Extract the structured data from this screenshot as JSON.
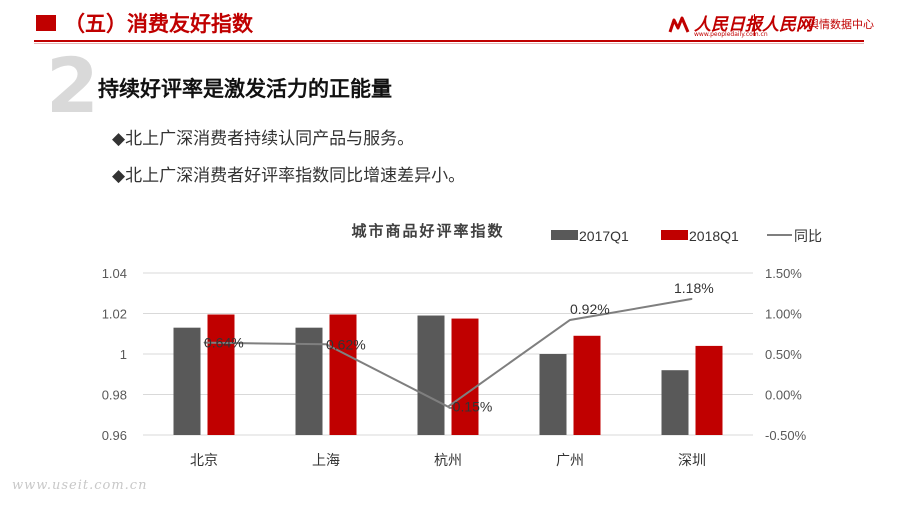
{
  "header": {
    "title": "（五）消费友好指数",
    "logo_people_daily": "人民日报",
    "logo_url": "www.peopledaily.com.cn",
    "logo_people_net": "人民网",
    "logo_people_net_sub": "舆情数据中心"
  },
  "section": {
    "number": "2",
    "heading": "持续好评率是激发活力的正能量",
    "bullets": [
      "◆北上广深消费者持续认同产品与服务。",
      "◆北上广深消费者好评率指数同比增速差异小。"
    ]
  },
  "watermark": "www.useit.com.cn",
  "colors": {
    "accent": "#c00000",
    "gray_bar": "#595959",
    "line": "#7f7f7f"
  },
  "chart_data": {
    "type": "bar",
    "title": "城市商品好评率指数",
    "categories": [
      "北京",
      "上海",
      "杭州",
      "广州",
      "深圳"
    ],
    "series": [
      {
        "name": "2017Q1",
        "kind": "bar",
        "axis": "left",
        "color": "#595959",
        "values": [
          1.013,
          1.013,
          1.019,
          1.0,
          0.992
        ]
      },
      {
        "name": "2018Q1",
        "kind": "bar",
        "axis": "left",
        "color": "#c00000",
        "values": [
          1.0195,
          1.0195,
          1.0175,
          1.009,
          1.004
        ]
      },
      {
        "name": "同比",
        "kind": "line",
        "axis": "right",
        "color": "#7f7f7f",
        "values": [
          0.64,
          0.62,
          -0.15,
          0.92,
          1.18
        ],
        "labels": [
          "0.64%",
          "0.62%",
          "-0.15%",
          "0.92%",
          "1.18%"
        ]
      }
    ],
    "ylim": [
      0.96,
      1.04
    ],
    "yticks": [
      "0.96",
      "0.98",
      "1",
      "1.02",
      "1.04"
    ],
    "y2lim": [
      -0.5,
      1.5
    ],
    "y2ticks": [
      "-0.50%",
      "0.00%",
      "0.50%",
      "1.00%",
      "1.50%"
    ],
    "grid": true,
    "legend": "top-right"
  }
}
